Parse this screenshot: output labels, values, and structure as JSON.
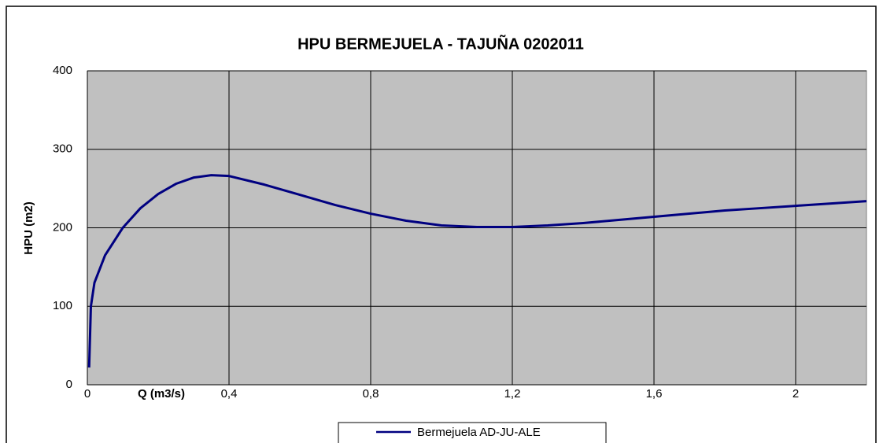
{
  "chart_data": {
    "type": "line",
    "title": "HPU BERMEJUELA - TAJUÑA 0202011",
    "x_label": "Q (m3/s)",
    "y_label": "HPU (m2)",
    "x": [
      0.005,
      0.01,
      0.02,
      0.05,
      0.1,
      0.15,
      0.2,
      0.25,
      0.3,
      0.35,
      0.4,
      0.5,
      0.6,
      0.7,
      0.8,
      0.9,
      1.0,
      1.1,
      1.2,
      1.3,
      1.4,
      1.5,
      1.6,
      1.7,
      1.8,
      1.9,
      2.0,
      2.1,
      2.2
    ],
    "series": [
      {
        "name": "Bermejuela AD-JU-ALE",
        "color": "#000080",
        "values": [
          22,
          100,
          130,
          165,
          200,
          225,
          243,
          256,
          264,
          267,
          266,
          255,
          242,
          229,
          218,
          209,
          203,
          201,
          201,
          203,
          206,
          210,
          214,
          218,
          222,
          225,
          228,
          231,
          234
        ]
      }
    ],
    "xlim": [
      0,
      2.2
    ],
    "xticks": [
      0,
      {
        "value": 0.4,
        "label": "0,4"
      },
      {
        "value": 0.8,
        "label": "0,8"
      },
      {
        "value": 1.2,
        "label": "1,2"
      },
      {
        "value": 1.6,
        "label": "1,6"
      },
      2
    ],
    "ylim": [
      0,
      400
    ],
    "yticks": [
      0,
      100,
      200,
      300,
      400
    ],
    "grid": true,
    "legend": "bottom"
  }
}
